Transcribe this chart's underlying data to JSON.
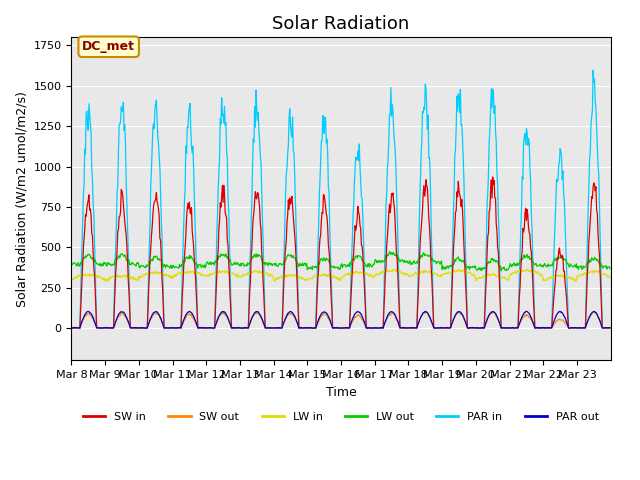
{
  "title": "Solar Radiation",
  "ylabel": "Solar Radiation (W/m2 umol/m2/s)",
  "xlabel": "Time",
  "ylim": [
    -200,
    1800
  ],
  "x_tick_labels": [
    "Mar 8",
    "Mar 9",
    "Mar 10",
    "Mar 11",
    "Mar 12",
    "Mar 13",
    "Mar 14",
    "Mar 15",
    "Mar 16",
    "Mar 17",
    "Mar 18",
    "Mar 19",
    "Mar 20",
    "Mar 21",
    "Mar 22",
    "Mar 23"
  ],
  "bg_color": "#e8e8e8",
  "fig_bg_color": "#ffffff",
  "legend_label": "DC_met",
  "legend_bg": "#ffffcc",
  "legend_border": "#cc8800",
  "series": {
    "SW_in": {
      "color": "#dd0000",
      "label": "SW in"
    },
    "SW_out": {
      "color": "#ff8800",
      "label": "SW out"
    },
    "LW_in": {
      "color": "#dddd00",
      "label": "LW in"
    },
    "LW_out": {
      "color": "#00cc00",
      "label": "LW out"
    },
    "PAR_in": {
      "color": "#00ccff",
      "label": "PAR in"
    },
    "PAR_out": {
      "color": "#0000cc",
      "label": "PAR out"
    }
  },
  "day_peaks_sw": [
    860,
    870,
    920,
    820,
    900,
    890,
    880,
    840,
    760,
    870,
    940,
    960,
    950,
    780,
    520,
    970
  ],
  "day_peaks_par": [
    1440,
    1460,
    1480,
    1440,
    1500,
    1500,
    1420,
    1380,
    1200,
    1540,
    1560,
    1580,
    1580,
    1340,
    1170,
    1620
  ],
  "title_fontsize": 13,
  "axis_label_fontsize": 9,
  "tick_fontsize": 8
}
